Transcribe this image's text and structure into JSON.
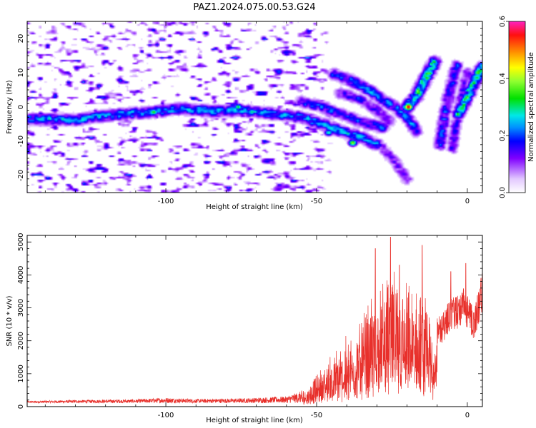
{
  "figure_title": "PAZ1.2024.075.00.53.G24",
  "chart_data": [
    {
      "type": "heatmap",
      "title": "PAZ1.2024.075.00.53.G24",
      "xlabel": "Height of straight line (km)",
      "ylabel": "Frequency (Hz)",
      "xlim": [
        -146,
        5
      ],
      "ylim": [
        -25,
        25
      ],
      "xticks": [
        -100,
        -50,
        0
      ],
      "yticks": [
        -20,
        -10,
        0,
        10,
        20
      ],
      "colorbar": {
        "label": "Normalized spectral amplitude",
        "range": [
          0.0,
          0.6
        ],
        "ticks": [
          "0.0",
          "0.2",
          "0.4",
          "0.6"
        ],
        "colormap": "gist_ncar"
      },
      "ridges": [
        {
          "points": [
            [
              -145,
              -3.5
            ],
            [
              -130,
              -3.8
            ],
            [
              -120,
              -2.5
            ],
            [
              -105,
              -1.5
            ],
            [
              -95,
              -0.5
            ],
            [
              -85,
              -1.2
            ],
            [
              -75,
              -1.0
            ],
            [
              -65,
              -2.0
            ],
            [
              -55,
              -3.0
            ],
            [
              -48,
              -5.0
            ],
            [
              -42,
              -7.0
            ],
            [
              -35,
              -9.0
            ],
            [
              -30,
              -11.0
            ]
          ],
          "amplitude": 0.22
        },
        {
          "points": [
            [
              -55,
              1.5
            ],
            [
              -48,
              0.0
            ],
            [
              -42,
              -2.0
            ],
            [
              -35,
              -4.5
            ],
            [
              -28,
              -6.0
            ]
          ],
          "amplitude": 0.18
        },
        {
          "points": [
            [
              -44,
              9.5
            ],
            [
              -38,
              7.5
            ],
            [
              -32,
              4.5
            ],
            [
              -28,
              2.0
            ],
            [
              -24,
              0.0
            ],
            [
              -20,
              -3.0
            ],
            [
              -17,
              -7.0
            ]
          ],
          "amplitude": 0.2
        },
        {
          "points": [
            [
              -42,
              4.0
            ],
            [
              -36,
              2.5
            ],
            [
              -30,
              -1.0
            ],
            [
              -26,
              -4.0
            ]
          ],
          "amplitude": 0.15
        },
        {
          "points": [
            [
              -28,
              -12.0
            ],
            [
              -24,
              -16.0
            ],
            [
              -20,
              -21.0
            ]
          ],
          "amplitude": 0.12
        },
        {
          "points": [
            [
              -20,
              0.0
            ],
            [
              -17,
              3.0
            ],
            [
              -14,
              8.0
            ],
            [
              -11,
              13.0
            ]
          ],
          "amplitude": 0.3
        },
        {
          "points": [
            [
              -9,
              -11.0
            ],
            [
              -8,
              -5.0
            ],
            [
              -6.5,
              2.0
            ],
            [
              -4.5,
              9.0
            ],
            [
              -3.5,
              12.0
            ]
          ],
          "amplitude": 0.17
        },
        {
          "points": [
            [
              -5,
              -12.0
            ],
            [
              -4,
              -6.0
            ],
            [
              -2.5,
              0.0
            ],
            [
              -1,
              6.0
            ],
            [
              0,
              10.0
            ]
          ],
          "amplitude": 0.14
        },
        {
          "points": [
            [
              -3,
              -2.0
            ],
            [
              -1,
              1.0
            ],
            [
              1,
              5.0
            ],
            [
              3,
              8.5
            ],
            [
              5,
              11.5
            ]
          ],
          "amplitude": 0.28
        }
      ],
      "hotspots": [
        {
          "x": -19.5,
          "y": 0.0,
          "amplitude": 0.6
        },
        {
          "x": -104,
          "y": -1.5,
          "amplitude": 0.35
        },
        {
          "x": -38,
          "y": -10.5,
          "amplitude": 0.4
        },
        {
          "x": -46,
          "y": -7.5,
          "amplitude": 0.3
        },
        {
          "x": 3.5,
          "y": 10.0,
          "amplitude": 0.38
        },
        {
          "x": -76,
          "y": 0.0,
          "amplitude": 0.33
        },
        {
          "x": -14.5,
          "y": 8.5,
          "amplitude": 0.26
        }
      ]
    },
    {
      "type": "line",
      "xlabel": "Height of straight line (km)",
      "ylabel": "SNR (10 * v/v)",
      "xlim": [
        -146,
        5
      ],
      "ylim": [
        0,
        5200
      ],
      "xticks": [
        -100,
        -50,
        0
      ],
      "yticks": [
        0,
        1000,
        2000,
        3000,
        4000,
        5000
      ],
      "color": "#e8302b",
      "envelope": [
        {
          "x": -146,
          "y": 120
        },
        {
          "x": -130,
          "y": 150
        },
        {
          "x": -110,
          "y": 170
        },
        {
          "x": -100,
          "y": 220
        },
        {
          "x": -90,
          "y": 180
        },
        {
          "x": -75,
          "y": 200
        },
        {
          "x": -60,
          "y": 260
        },
        {
          "x": -54,
          "y": 450
        },
        {
          "x": -50,
          "y": 800
        },
        {
          "x": -45,
          "y": 1300
        },
        {
          "x": -40,
          "y": 1700
        },
        {
          "x": -35,
          "y": 2200
        },
        {
          "x": -32,
          "y": 2700
        },
        {
          "x": -30,
          "y": 3000
        },
        {
          "x": -27,
          "y": 3300
        },
        {
          "x": -25,
          "y": 3400
        },
        {
          "x": -22,
          "y": 3200
        },
        {
          "x": -20,
          "y": 3000
        },
        {
          "x": -17,
          "y": 3000
        },
        {
          "x": -15,
          "y": 2800
        },
        {
          "x": -12,
          "y": 2300
        },
        {
          "x": -8,
          "y": 2600
        },
        {
          "x": -6,
          "y": 3000
        },
        {
          "x": -3,
          "y": 3100
        },
        {
          "x": -1,
          "y": 3300
        },
        {
          "x": 0,
          "y": 3100
        },
        {
          "x": 2,
          "y": 2700
        },
        {
          "x": 4,
          "y": 3300
        },
        {
          "x": 5,
          "y": 3800
        }
      ],
      "peaks": [
        {
          "x": -30.5,
          "y": 4800
        },
        {
          "x": -25.5,
          "y": 5150
        },
        {
          "x": -22.5,
          "y": 4300
        },
        {
          "x": -15.0,
          "y": 4900
        },
        {
          "x": -5.5,
          "y": 4100
        },
        {
          "x": -0.5,
          "y": 4350
        },
        {
          "x": 4.5,
          "y": 3900
        }
      ]
    }
  ]
}
